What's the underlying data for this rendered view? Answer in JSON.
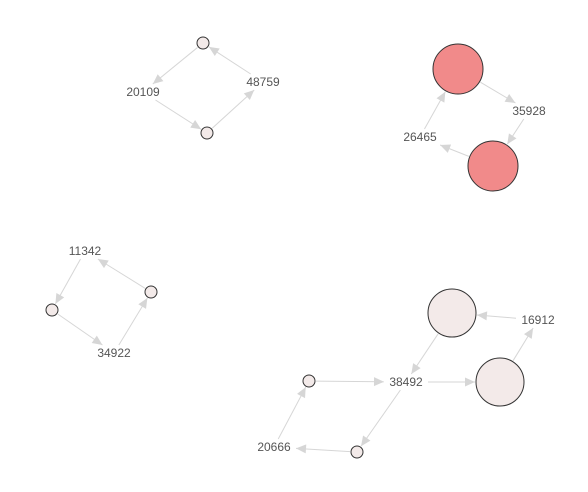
{
  "graph": {
    "title": "",
    "components": [
      {
        "id": "c1",
        "labels": [
          "20109",
          "48759"
        ],
        "edges": [
          [
            "20109",
            "n1b"
          ],
          [
            "n1b",
            "48759"
          ],
          [
            "48759",
            "n1a"
          ],
          [
            "n1a",
            "20109"
          ]
        ]
      },
      {
        "id": "c2",
        "labels": [
          "35928",
          "26465"
        ],
        "edges": [
          [
            "n2a",
            "35928"
          ],
          [
            "35928",
            "n2b"
          ],
          [
            "n2b",
            "26465"
          ],
          [
            "26465",
            "n2a"
          ]
        ]
      },
      {
        "id": "c3",
        "labels": [
          "11342",
          "34922"
        ],
        "edges": [
          [
            "11342",
            "n3a"
          ],
          [
            "n3a",
            "34922"
          ],
          [
            "34922",
            "n3b"
          ],
          [
            "n3b",
            "11342"
          ]
        ]
      },
      {
        "id": "c4",
        "labels": [
          "16912",
          "38492",
          "20666"
        ],
        "edges": [
          [
            "n4c",
            "38492"
          ],
          [
            "38492",
            "n4b"
          ],
          [
            "n4b",
            "16912"
          ],
          [
            "16912",
            "n4a"
          ],
          [
            "n4a",
            "38492"
          ],
          [
            "38492",
            "n4d"
          ],
          [
            "n4d",
            "20666"
          ],
          [
            "20666",
            "n4c"
          ]
        ]
      }
    ],
    "node_style": {
      "n1a": "#f3eae9",
      "n1b": "#f3eae9",
      "n2a": "#f18a8a",
      "n2b": "#f18a8a",
      "n3a": "#f3eae9",
      "n3b": "#f3eae9",
      "n4a": "#f3eae9",
      "n4b": "#f3eae9",
      "n4c": "#f3eae9",
      "n4d": "#f3eae9"
    },
    "edge_color": "#d6d6d6",
    "label_color": "#555555",
    "node_stroke": "#333333"
  }
}
